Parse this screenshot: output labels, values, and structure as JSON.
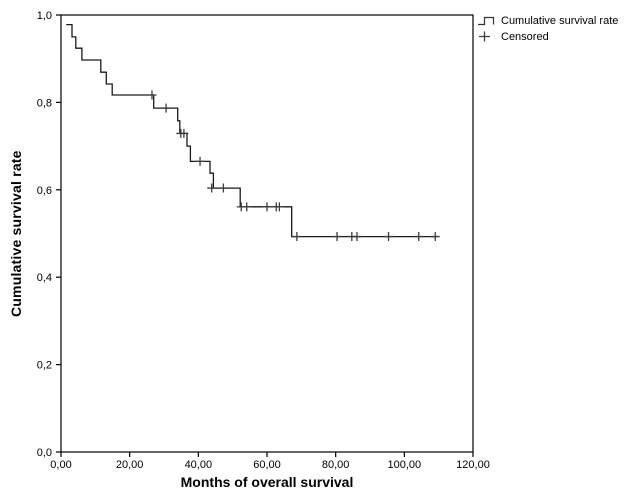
{
  "chart_data": {
    "type": "line",
    "subtype": "kaplan-meier-step",
    "title": "",
    "xlabel": "Months of overall survival",
    "ylabel": "Cumulative survival rate",
    "xlim": [
      0,
      120
    ],
    "ylim": [
      0.0,
      1.0
    ],
    "grid": false,
    "x_ticks": [
      {
        "value": 0,
        "label": "0,00"
      },
      {
        "value": 20,
        "label": "20,00"
      },
      {
        "value": 40,
        "label": "40,00"
      },
      {
        "value": 60,
        "label": "60,00"
      },
      {
        "value": 80,
        "label": "80,00"
      },
      {
        "value": 100,
        "label": "100,00"
      },
      {
        "value": 120,
        "label": "120,00"
      }
    ],
    "y_ticks": [
      {
        "value": 0.0,
        "label": "0,0"
      },
      {
        "value": 0.2,
        "label": "0,2"
      },
      {
        "value": 0.4,
        "label": "0,4"
      },
      {
        "value": 0.6,
        "label": "0,6"
      },
      {
        "value": 0.8,
        "label": "0,8"
      },
      {
        "value": 1.0,
        "label": "1,0"
      }
    ],
    "legend": {
      "position": "top-right-outside",
      "items": [
        {
          "label": "Cumulative survival rate",
          "marker": "step-line"
        },
        {
          "label": "Censored",
          "marker": "plus"
        }
      ]
    },
    "series": [
      {
        "name": "Cumulative survival rate",
        "type": "step",
        "start": {
          "t": 1.5,
          "s": 0.978
        },
        "end_t": 109.6,
        "steps": [
          [
            3.2,
            0.95
          ],
          [
            4.3,
            0.924
          ],
          [
            6.1,
            0.897
          ],
          [
            11.6,
            0.869
          ],
          [
            13.2,
            0.842
          ],
          [
            14.9,
            0.817
          ],
          [
            27.0,
            0.787
          ],
          [
            34.0,
            0.758
          ],
          [
            34.6,
            0.729
          ],
          [
            36.7,
            0.7
          ],
          [
            37.7,
            0.665
          ],
          [
            43.4,
            0.638
          ],
          [
            44.4,
            0.604
          ],
          [
            52.2,
            0.561
          ],
          [
            67.2,
            0.493
          ]
        ]
      },
      {
        "name": "Censored",
        "type": "scatter-plus",
        "points": [
          [
            26.5,
            0.817
          ],
          [
            30.6,
            0.787
          ],
          [
            34.9,
            0.729
          ],
          [
            35.8,
            0.729
          ],
          [
            40.5,
            0.665
          ],
          [
            43.9,
            0.604
          ],
          [
            47.3,
            0.604
          ],
          [
            52.5,
            0.561
          ],
          [
            54.1,
            0.561
          ],
          [
            60.0,
            0.561
          ],
          [
            62.7,
            0.561
          ],
          [
            63.6,
            0.561
          ],
          [
            68.7,
            0.493
          ],
          [
            80.4,
            0.493
          ],
          [
            84.7,
            0.493
          ],
          [
            86.2,
            0.493
          ],
          [
            95.4,
            0.493
          ],
          [
            104.2,
            0.493
          ],
          [
            109.0,
            0.493
          ]
        ]
      }
    ],
    "colors": {
      "curve": "#1a1a1a",
      "censor": "#3d3d3d",
      "axis": "#000000",
      "background": "#ffffff"
    }
  }
}
